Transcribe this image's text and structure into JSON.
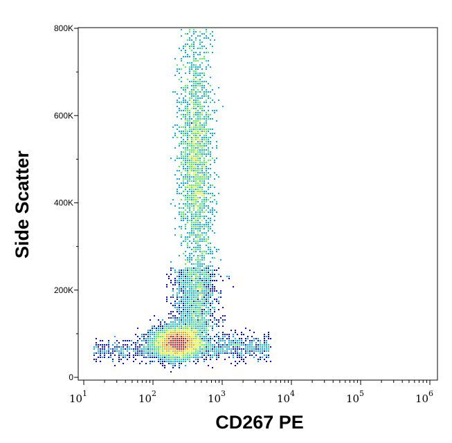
{
  "chart_data": {
    "type": "heatmap",
    "subtype": "flow-cytometry density dot plot",
    "xlabel": "CD267 PE",
    "ylabel": "Side Scatter",
    "x_scale": "log",
    "xlim": [
      10,
      1000000
    ],
    "ylim": [
      0,
      800000
    ],
    "x_ticks": [
      {
        "base": "10",
        "exp": "1",
        "value": 10
      },
      {
        "base": "10",
        "exp": "2",
        "value": 100
      },
      {
        "base": "10",
        "exp": "3",
        "value": 1000
      },
      {
        "base": "10",
        "exp": "4",
        "value": 10000
      },
      {
        "base": "10",
        "exp": "5",
        "value": 100000
      },
      {
        "base": "10",
        "exp": "6",
        "value": 1000000
      }
    ],
    "y_ticks": [
      {
        "label": "0",
        "value": 0
      },
      {
        "label": "200K",
        "value": 200000
      },
      {
        "label": "400K",
        "value": 400000
      },
      {
        "label": "600K",
        "value": 600000
      },
      {
        "label": "800K",
        "value": 800000
      }
    ],
    "colormap": [
      "#0000ff",
      "#00aaff",
      "#00e0c0",
      "#40ff40",
      "#e0ff00",
      "#ffa000",
      "#ff0000"
    ],
    "populations": [
      {
        "description": "dense low-SSC population",
        "x_center": 220,
        "y_center": 78000,
        "density": "highest"
      },
      {
        "description": "high-SSC stream",
        "x_center": 420,
        "y_range": [
          120000,
          800000
        ],
        "y_peak": 490000,
        "density": "medium"
      },
      {
        "description": "high-CD267 tail",
        "x_range": [
          500,
          5000
        ],
        "y_center": 70000,
        "density": "low"
      },
      {
        "description": "low-CD267 tail",
        "x_range": [
          15,
          100
        ],
        "y_center": 60000,
        "density": "low"
      }
    ]
  }
}
